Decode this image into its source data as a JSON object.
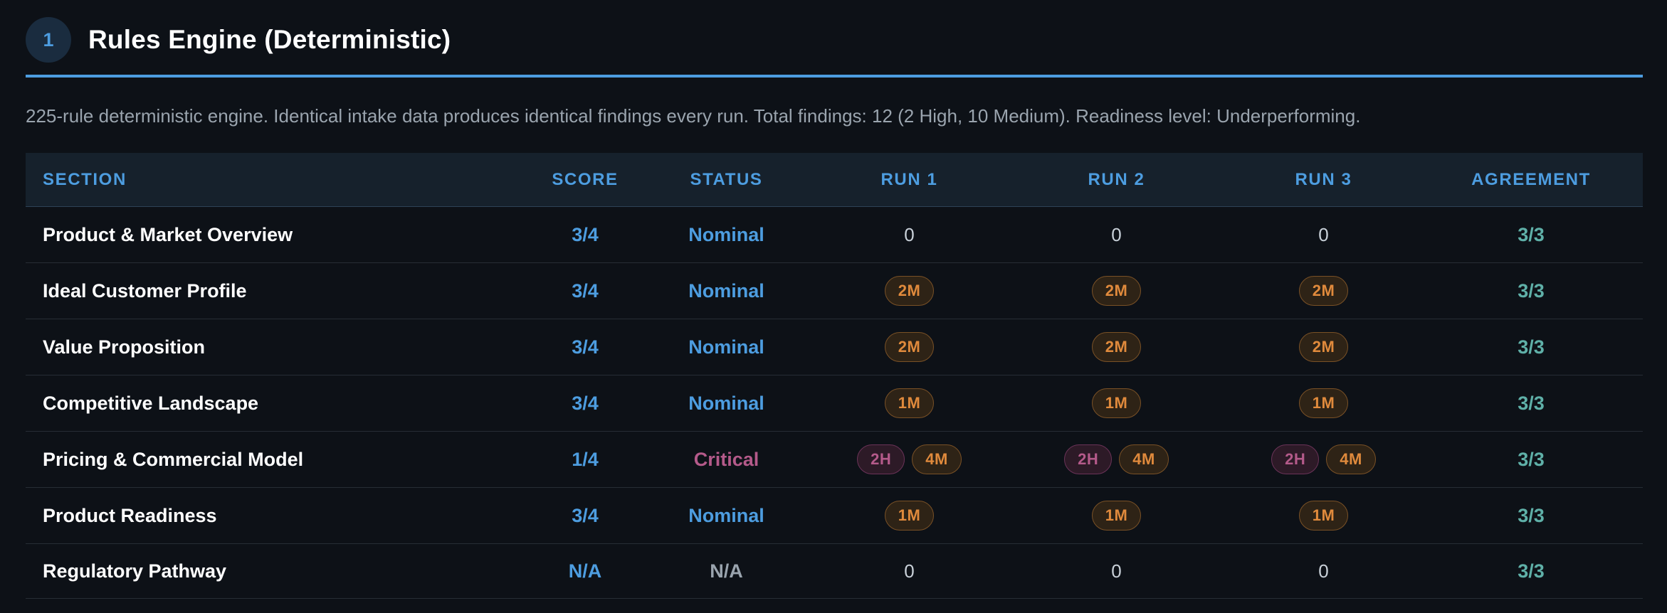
{
  "header": {
    "step_number": "1",
    "title": "Rules Engine (Deterministic)"
  },
  "description": "225-rule deterministic engine. Identical intake data produces identical findings every run. Total findings: 12 (2 High, 10 Medium). Readiness level: Underperforming.",
  "colors": {
    "accent": "#4d9de0",
    "critical": "#b45a8a",
    "medium_badge": "#e08a3c",
    "agreement": "#5fb0a8",
    "background": "#0d1117"
  },
  "table": {
    "columns": [
      "SECTION",
      "SCORE",
      "STATUS",
      "RUN 1",
      "RUN 2",
      "RUN 3",
      "AGREEMENT"
    ],
    "rows": [
      {
        "section": "Product & Market Overview",
        "score": "3/4",
        "status": "Nominal",
        "runs": [
          [],
          [],
          []
        ],
        "zero": "0",
        "agreement": "3/3"
      },
      {
        "section": "Ideal Customer Profile",
        "score": "3/4",
        "status": "Nominal",
        "runs": [
          [
            "2M"
          ],
          [
            "2M"
          ],
          [
            "2M"
          ]
        ],
        "agreement": "3/3"
      },
      {
        "section": "Value Proposition",
        "score": "3/4",
        "status": "Nominal",
        "runs": [
          [
            "2M"
          ],
          [
            "2M"
          ],
          [
            "2M"
          ]
        ],
        "agreement": "3/3"
      },
      {
        "section": "Competitive Landscape",
        "score": "3/4",
        "status": "Nominal",
        "runs": [
          [
            "1M"
          ],
          [
            "1M"
          ],
          [
            "1M"
          ]
        ],
        "agreement": "3/3"
      },
      {
        "section": "Pricing & Commercial Model",
        "score": "1/4",
        "status": "Critical",
        "runs": [
          [
            "2H",
            "4M"
          ],
          [
            "2H",
            "4M"
          ],
          [
            "2H",
            "4M"
          ]
        ],
        "agreement": "3/3"
      },
      {
        "section": "Product Readiness",
        "score": "3/4",
        "status": "Nominal",
        "runs": [
          [
            "1M"
          ],
          [
            "1M"
          ],
          [
            "1M"
          ]
        ],
        "agreement": "3/3"
      },
      {
        "section": "Regulatory Pathway",
        "score": "N/A",
        "status": "N/A",
        "runs": [
          [],
          [],
          []
        ],
        "zero": "0",
        "agreement": "3/3"
      }
    ]
  }
}
